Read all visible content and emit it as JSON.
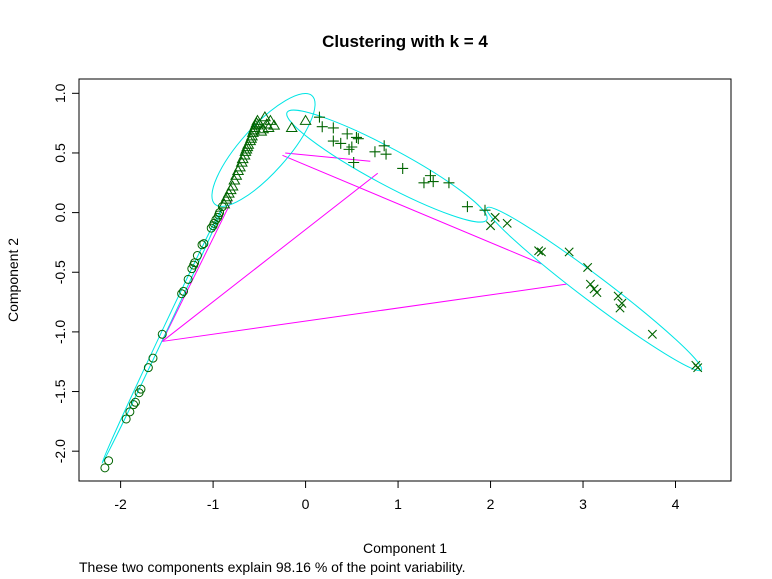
{
  "chart_data": {
    "type": "scatter",
    "title": "Clustering with k =  4",
    "subtitle": "These two components explain 98.16 % of the point variability.",
    "xlabel": "Component 1",
    "ylabel": "Component 2",
    "xlim": [
      -2.45,
      4.6
    ],
    "ylim": [
      -2.25,
      1.12
    ],
    "xticks": [
      -2,
      -1,
      0,
      1,
      2,
      3,
      4
    ],
    "yticks": [
      -2.0,
      -1.5,
      -1.0,
      -0.5,
      0.0,
      0.5,
      1.0
    ],
    "xtick_labels": [
      "-2",
      "-1",
      "0",
      "1",
      "2",
      "3",
      "4"
    ],
    "ytick_labels": [
      "-2.0",
      "-1.5",
      "-1.0",
      "-0.5",
      "0.0",
      "0.5",
      "1.0"
    ],
    "grid": false,
    "colors": {
      "points": "#006400",
      "ellipses": "#00e5e5",
      "segments": "#ff00ff"
    },
    "series": [
      {
        "marker": "circle",
        "points": [
          [
            -2.17,
            -2.14
          ],
          [
            -2.13,
            -2.08
          ],
          [
            -1.94,
            -1.73
          ],
          [
            -1.9,
            -1.67
          ],
          [
            -1.86,
            -1.61
          ],
          [
            -1.84,
            -1.59
          ],
          [
            -1.8,
            -1.51
          ],
          [
            -1.78,
            -1.48
          ],
          [
            -1.7,
            -1.3
          ],
          [
            -1.65,
            -1.22
          ],
          [
            -1.55,
            -1.02
          ],
          [
            -1.34,
            -0.68
          ],
          [
            -1.32,
            -0.66
          ],
          [
            -1.27,
            -0.56
          ],
          [
            -1.23,
            -0.47
          ],
          [
            -1.21,
            -0.44
          ],
          [
            -1.2,
            -0.42
          ],
          [
            -1.17,
            -0.36
          ],
          [
            -1.12,
            -0.27
          ],
          [
            -1.1,
            -0.26
          ],
          [
            -1.02,
            -0.13
          ],
          [
            -1.0,
            -0.11
          ],
          [
            -0.99,
            -0.09
          ],
          [
            -0.97,
            -0.06
          ],
          [
            -0.95,
            -0.04
          ],
          [
            -0.94,
            -0.02
          ],
          [
            -0.93,
            0.0
          ],
          [
            -0.9,
            0.05
          ]
        ]
      },
      {
        "marker": "triangle",
        "points": [
          [
            -0.88,
            0.07
          ],
          [
            -0.86,
            0.11
          ],
          [
            -0.85,
            0.13
          ],
          [
            -0.83,
            0.16
          ],
          [
            -0.81,
            0.19
          ],
          [
            -0.79,
            0.22
          ],
          [
            -0.77,
            0.27
          ],
          [
            -0.75,
            0.31
          ],
          [
            -0.73,
            0.35
          ],
          [
            -0.71,
            0.38
          ],
          [
            -0.69,
            0.42
          ],
          [
            -0.68,
            0.45
          ],
          [
            -0.66,
            0.48
          ],
          [
            -0.65,
            0.51
          ],
          [
            -0.64,
            0.53
          ],
          [
            -0.63,
            0.55
          ],
          [
            -0.62,
            0.57
          ],
          [
            -0.6,
            0.6
          ],
          [
            -0.59,
            0.62
          ],
          [
            -0.58,
            0.64
          ],
          [
            -0.57,
            0.67
          ],
          [
            -0.56,
            0.69
          ],
          [
            -0.55,
            0.71
          ],
          [
            -0.54,
            0.73
          ],
          [
            -0.53,
            0.75
          ],
          [
            -0.52,
            0.77
          ],
          [
            -0.5,
            0.74
          ],
          [
            -0.48,
            0.68
          ],
          [
            -0.46,
            0.7
          ],
          [
            -0.44,
            0.8
          ],
          [
            -0.42,
            0.74
          ],
          [
            -0.4,
            0.71
          ],
          [
            -0.38,
            0.77
          ],
          [
            -0.34,
            0.73
          ],
          [
            -0.15,
            0.71
          ],
          [
            0.0,
            0.77
          ]
        ]
      },
      {
        "marker": "plus",
        "points": [
          [
            0.15,
            0.8
          ],
          [
            0.18,
            0.72
          ],
          [
            0.3,
            0.71
          ],
          [
            0.3,
            0.6
          ],
          [
            0.38,
            0.58
          ],
          [
            0.45,
            0.66
          ],
          [
            0.47,
            0.53
          ],
          [
            0.5,
            0.55
          ],
          [
            0.55,
            0.63
          ],
          [
            0.57,
            0.62
          ],
          [
            0.52,
            0.42
          ],
          [
            0.75,
            0.51
          ],
          [
            0.85,
            0.56
          ],
          [
            0.87,
            0.49
          ],
          [
            1.05,
            0.37
          ],
          [
            1.28,
            0.25
          ],
          [
            1.35,
            0.31
          ],
          [
            1.38,
            0.26
          ],
          [
            1.55,
            0.25
          ],
          [
            1.75,
            0.05
          ],
          [
            1.94,
            0.02
          ]
        ]
      },
      {
        "marker": "cross",
        "points": [
          [
            2.0,
            -0.11
          ],
          [
            2.05,
            -0.04
          ],
          [
            2.18,
            -0.09
          ],
          [
            2.52,
            -0.32
          ],
          [
            2.55,
            -0.33
          ],
          [
            2.85,
            -0.33
          ],
          [
            3.05,
            -0.46
          ],
          [
            3.08,
            -0.6
          ],
          [
            3.12,
            -0.64
          ],
          [
            3.15,
            -0.67
          ],
          [
            3.38,
            -0.7
          ],
          [
            3.4,
            -0.8
          ],
          [
            3.42,
            -0.76
          ],
          [
            3.75,
            -1.02
          ],
          [
            4.22,
            -1.28
          ],
          [
            4.24,
            -1.3
          ]
        ]
      }
    ],
    "ellipses": [
      {
        "points": [
          [
            -2.2,
            -2.1
          ],
          [
            -0.9,
            0.04
          ],
          [
            -1.55,
            -1.02
          ]
        ],
        "axes": [
          1.45,
          0.02
        ],
        "angle": 58.7
      },
      {
        "points": [
          [
            -0.98,
            0.07
          ],
          [
            0.07,
            0.98
          ],
          [
            -0.5,
            0.5
          ]
        ],
        "axes": [
          0.62,
          0.22
        ],
        "angle": 59.0
      },
      {
        "points": [
          [
            -0.2,
            0.84
          ],
          [
            1.96,
            -0.06
          ],
          [
            0.85,
            0.48
          ]
        ],
        "axes": [
          1.15,
          0.17
        ],
        "angle": -24.0
      },
      {
        "points": [
          [
            1.96,
            0.04
          ],
          [
            4.28,
            -1.32
          ],
          [
            3.1,
            -0.6
          ]
        ],
        "axes": [
          1.35,
          0.12
        ],
        "angle": -33.0
      }
    ],
    "segments": [
      [
        [
          -1.55,
          -1.08
        ],
        [
          -0.8,
          0.1
        ]
      ],
      [
        [
          -1.55,
          -1.08
        ],
        [
          0.78,
          0.33
        ]
      ],
      [
        [
          -1.55,
          -1.08
        ],
        [
          2.82,
          -0.6
        ]
      ],
      [
        [
          -0.25,
          0.48
        ],
        [
          2.55,
          -0.43
        ]
      ],
      [
        [
          -0.22,
          0.5
        ],
        [
          0.7,
          0.43
        ]
      ]
    ]
  }
}
